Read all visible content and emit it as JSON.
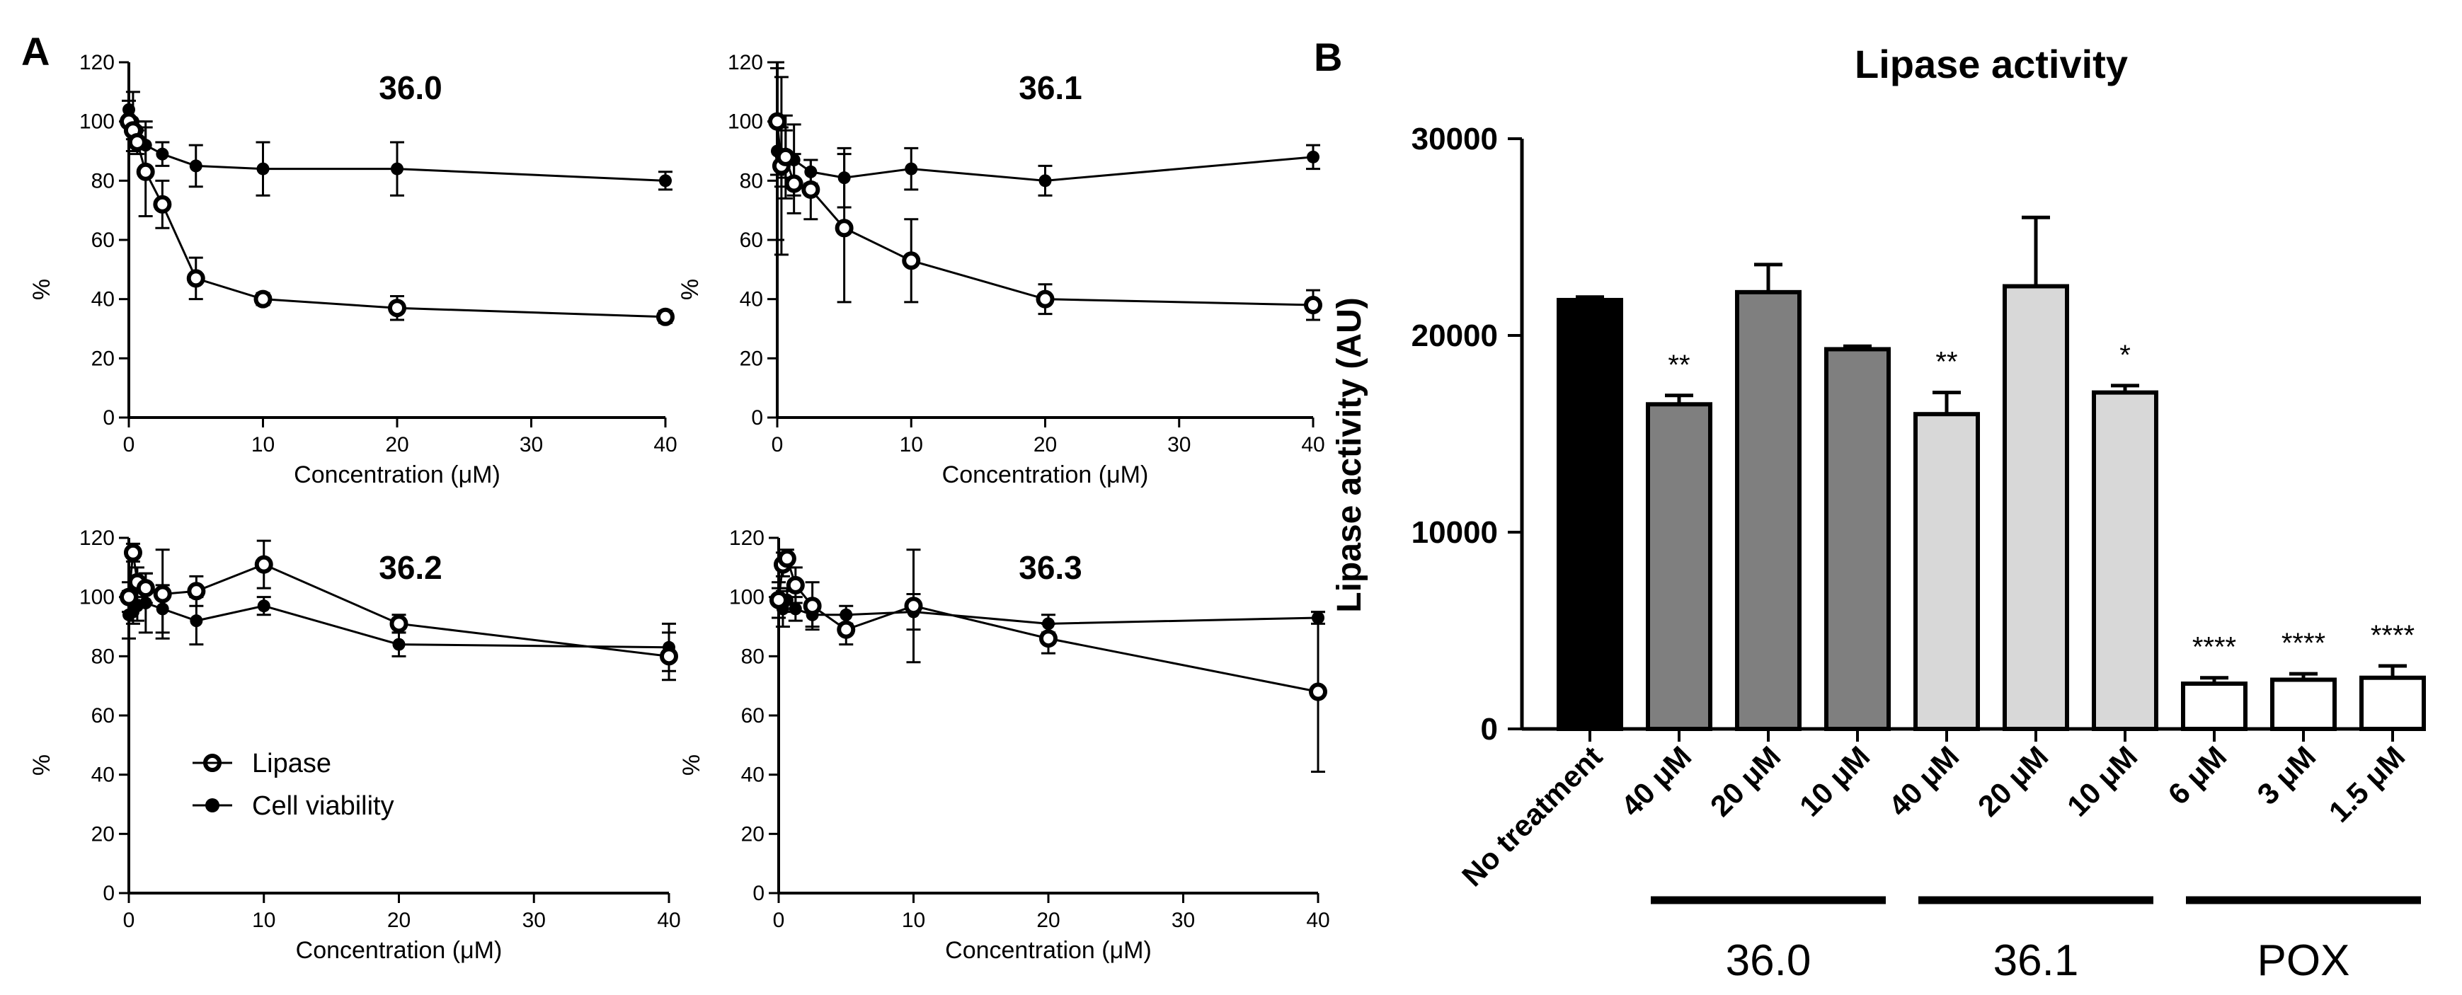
{
  "panel_a_letter": "A",
  "panel_b_letter": "B",
  "legend": {
    "lipase": "Lipase",
    "viability": "Cell viability"
  },
  "colors": {
    "ink": "#000000",
    "no_treatment": "#000000",
    "group_36_0": "#7f7f7f",
    "group_36_1": "#d8d8d8",
    "group_pox": "#ffffff"
  },
  "groups": [
    {
      "key": "g360",
      "label": "36.0"
    },
    {
      "key": "g361",
      "label": "36.1"
    },
    {
      "key": "gpox",
      "label": "POX"
    }
  ],
  "chart_data": [
    {
      "type": "line",
      "title": "36.0",
      "xlabel": "Concentration (μM)",
      "ylabel": "%",
      "xlim": [
        0,
        40
      ],
      "ylim": [
        0,
        120
      ],
      "xticks": [
        0,
        10,
        20,
        30,
        40
      ],
      "yticks": [
        0,
        20,
        40,
        60,
        80,
        100,
        120
      ],
      "series": [
        {
          "name": "Lipase",
          "marker": "open-circle",
          "x": [
            0,
            0.3125,
            0.625,
            1.25,
            2.5,
            5,
            10,
            20,
            40
          ],
          "y": [
            100,
            97,
            93,
            83,
            72,
            47,
            40,
            37,
            34
          ],
          "err": [
            0,
            3,
            4,
            15,
            8,
            7,
            2,
            4,
            2
          ]
        },
        {
          "name": "Cell viability",
          "marker": "filled-circle",
          "x": [
            0,
            0.3125,
            0.625,
            1.25,
            2.5,
            5,
            10,
            20,
            40
          ],
          "y": [
            104,
            100,
            97,
            92,
            89,
            85,
            84,
            84,
            80
          ],
          "err": [
            3,
            10,
            3,
            8,
            4,
            7,
            9,
            9,
            3
          ]
        }
      ]
    },
    {
      "type": "line",
      "title": "36.1",
      "xlabel": "Concentration (μM)",
      "ylabel": "%",
      "xlim": [
        0,
        40
      ],
      "ylim": [
        0,
        120
      ],
      "xticks": [
        0,
        10,
        20,
        30,
        40
      ],
      "yticks": [
        0,
        20,
        40,
        60,
        80,
        100,
        120
      ],
      "series": [
        {
          "name": "Lipase",
          "marker": "open-circle",
          "x": [
            0,
            0.3125,
            0.625,
            1.25,
            2.5,
            5,
            10,
            20,
            40
          ],
          "y": [
            100,
            85,
            88,
            79,
            77,
            64,
            53,
            40,
            38
          ],
          "err": [
            18,
            30,
            14,
            10,
            10,
            25,
            14,
            5,
            5
          ]
        },
        {
          "name": "Cell viability",
          "marker": "filled-circle",
          "x": [
            0,
            0.3125,
            0.625,
            1.25,
            2.5,
            5,
            10,
            20,
            40
          ],
          "y": [
            90,
            88,
            89,
            87,
            83,
            81,
            84,
            80,
            88
          ],
          "err": [
            30,
            10,
            8,
            12,
            4,
            10,
            7,
            5,
            4
          ]
        }
      ]
    },
    {
      "type": "line",
      "title": "36.2",
      "xlabel": "Concentration (μM)",
      "ylabel": "%",
      "xlim": [
        0,
        40
      ],
      "ylim": [
        0,
        120
      ],
      "xticks": [
        0,
        10,
        20,
        30,
        40
      ],
      "yticks": [
        0,
        20,
        40,
        60,
        80,
        100,
        120
      ],
      "series": [
        {
          "name": "Lipase",
          "marker": "open-circle",
          "x": [
            0,
            0.3125,
            0.625,
            1.25,
            2.5,
            5,
            10,
            20,
            40
          ],
          "y": [
            100,
            115,
            105,
            103,
            101,
            102,
            111,
            91,
            80
          ],
          "err": [
            5,
            3,
            5,
            5,
            15,
            5,
            8,
            3,
            8
          ]
        },
        {
          "name": "Cell viability",
          "marker": "filled-circle",
          "x": [
            0,
            0.3125,
            0.625,
            1.25,
            2.5,
            5,
            10,
            20,
            40
          ],
          "y": [
            94,
            95,
            97,
            98,
            96,
            92,
            97,
            84,
            83
          ],
          "err": [
            8,
            4,
            5,
            10,
            8,
            8,
            3,
            4,
            8
          ]
        }
      ]
    },
    {
      "type": "line",
      "title": "36.3",
      "xlabel": "Concentration (μM)",
      "ylabel": "%",
      "xlim": [
        0,
        40
      ],
      "ylim": [
        0,
        120
      ],
      "xticks": [
        0,
        10,
        20,
        30,
        40
      ],
      "yticks": [
        0,
        20,
        40,
        60,
        80,
        100,
        120
      ],
      "series": [
        {
          "name": "Lipase",
          "marker": "open-circle",
          "x": [
            0,
            0.3125,
            0.625,
            1.25,
            2.5,
            5,
            10,
            20,
            40
          ],
          "y": [
            99,
            111,
            113,
            104,
            97,
            89,
            97,
            86,
            68
          ],
          "err": [
            6,
            4,
            3,
            6,
            8,
            5,
            19,
            5,
            27
          ]
        },
        {
          "name": "Cell viability",
          "marker": "filled-circle",
          "x": [
            0,
            0.3125,
            0.625,
            1.25,
            2.5,
            5,
            10,
            20,
            40
          ],
          "y": [
            98,
            96,
            99,
            96,
            94,
            94,
            95,
            91,
            93
          ],
          "err": [
            5,
            6,
            4,
            4,
            4,
            3,
            6,
            3,
            2
          ]
        }
      ]
    },
    {
      "type": "bar",
      "title": "Lipase activity",
      "xlabel": "",
      "ylabel": "Lipase activity (AU)",
      "ylim": [
        0,
        30000
      ],
      "yticks": [
        0,
        10000,
        20000,
        30000
      ],
      "categories": [
        "No treatment",
        "40 μM",
        "20 μM",
        "10 μM",
        "40 μM",
        "20 μM",
        "10 μM",
        "6 μM",
        "3 μM",
        "1.5 μM"
      ],
      "category_groups": [
        "none",
        "g360",
        "g360",
        "g360",
        "g361",
        "g361",
        "g361",
        "gpox",
        "gpox",
        "gpox"
      ],
      "values": [
        21800,
        16500,
        22200,
        19300,
        16000,
        22500,
        17100,
        2300,
        2500,
        2600
      ],
      "err": [
        150,
        450,
        1400,
        150,
        1100,
        3500,
        350,
        300,
        300,
        600
      ],
      "significance": [
        "",
        "**",
        "",
        "",
        "**",
        "",
        "*",
        "****",
        "****",
        "****"
      ]
    }
  ]
}
